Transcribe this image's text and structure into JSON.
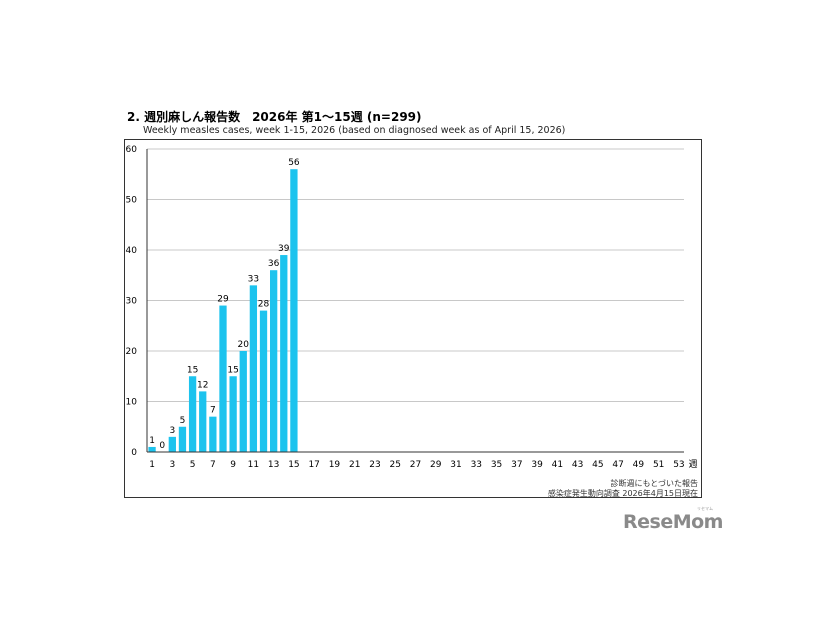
{
  "header": {
    "title": "2. 週別麻しん報告数　2026年 第1～15週 (n=299)",
    "subtitle": "Weekly measles cases, week 1-15, 2026 (based on diagnosed week as of April 15, 2026)"
  },
  "notes": {
    "line1": "診断週にもとづいた報告",
    "line2": "感染症発生動向調査 2026年4月15日現在"
  },
  "logo": {
    "text": "ReseMom",
    "ruby": "リセマム"
  },
  "colors": {
    "bar": "#1cc3ee",
    "grid": "#c8c8c8",
    "axis": "#333333"
  },
  "chart_data": {
    "type": "bar",
    "title": "2. 週別麻しん報告数　2026年 第1～15週 (n=299)",
    "subtitle": "Weekly measles cases, week 1-15, 2026 (based on diagnosed week as of April 15, 2026)",
    "xlabel": "週",
    "ylabel": "",
    "x_range": [
      1,
      53
    ],
    "x_tick_labels": [
      "1",
      "3",
      "5",
      "7",
      "9",
      "11",
      "13",
      "15",
      "17",
      "19",
      "21",
      "23",
      "25",
      "27",
      "29",
      "31",
      "33",
      "35",
      "37",
      "39",
      "41",
      "43",
      "45",
      "47",
      "49",
      "51",
      "53"
    ],
    "ylim": [
      0,
      60
    ],
    "y_ticks": [
      0,
      10,
      20,
      30,
      40,
      50,
      60
    ],
    "grid": true,
    "categories": [
      1,
      2,
      3,
      4,
      5,
      6,
      7,
      8,
      9,
      10,
      11,
      12,
      13,
      14,
      15
    ],
    "values": [
      1,
      0,
      3,
      5,
      15,
      12,
      7,
      29,
      15,
      20,
      33,
      28,
      36,
      39,
      56
    ],
    "data_labels": true
  }
}
